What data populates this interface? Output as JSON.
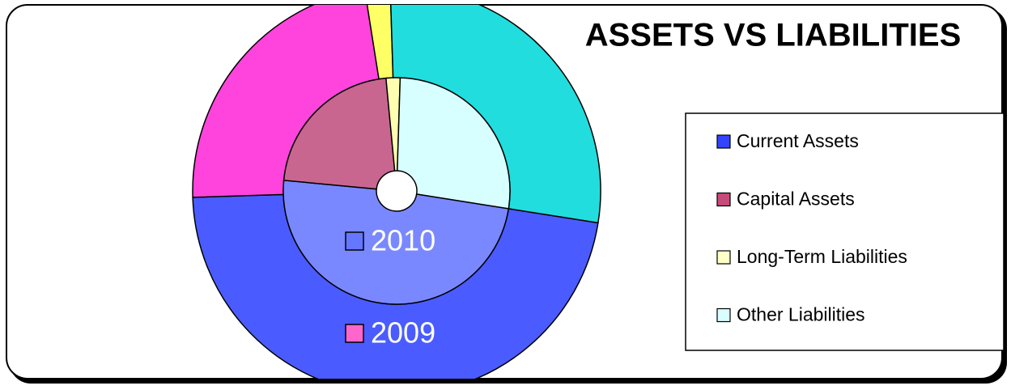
{
  "chart_data": {
    "type": "doughnut",
    "title": "ASSETS VS LIABILITIES",
    "categories": [
      "Current Assets",
      "Capital Assets",
      "Long-Term Liabilities",
      "Other Liabilities"
    ],
    "series": [
      {
        "name": "2009",
        "values": [
          47,
          23,
          2,
          28
        ],
        "colors": [
          "#4a5cff",
          "#ff44dd",
          "#ffff66",
          "#22dddd"
        ]
      },
      {
        "name": "2010",
        "values": [
          49,
          22,
          2,
          27
        ],
        "colors": [
          "#7a88ff",
          "#c9668f",
          "#ffffb0",
          "#d8ffff"
        ]
      }
    ],
    "legend_colors": [
      "#3344ff",
      "#c84a7a",
      "#ffffc8",
      "#d8ffff"
    ],
    "legend": "right"
  }
}
